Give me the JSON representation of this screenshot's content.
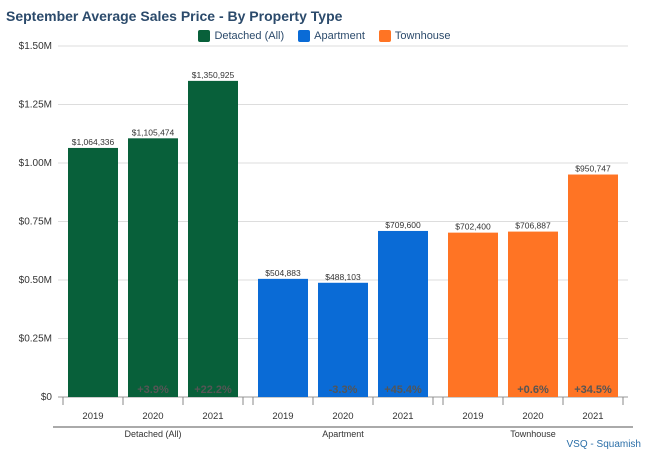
{
  "chart_data": {
    "type": "bar",
    "title": "September Average Sales Price - By Property Type",
    "ylim": [
      0,
      1500000
    ],
    "yticks": [
      0,
      250000,
      500000,
      750000,
      1000000,
      1250000,
      1500000
    ],
    "ytick_labels": [
      "$0",
      "$0.25M",
      "$0.50M",
      "$0.75M",
      "$1.00M",
      "$1.25M",
      "$1.50M"
    ],
    "grid": true,
    "legend_position": "top-center",
    "series": [
      {
        "name": "Detached (All)",
        "color": "#08603a",
        "categories": [
          "2019",
          "2020",
          "2021"
        ],
        "values": [
          1064336,
          1105474,
          1350925
        ],
        "value_labels": [
          "$1,064,336",
          "$1,105,474",
          "$1,350,925"
        ],
        "change_labels": [
          "",
          "+3.9%",
          "+22.2%"
        ]
      },
      {
        "name": "Apartment",
        "color": "#0a6bd6",
        "categories": [
          "2019",
          "2020",
          "2021"
        ],
        "values": [
          504883,
          488103,
          709600
        ],
        "value_labels": [
          "$504,883",
          "$488,103",
          "$709,600"
        ],
        "change_labels": [
          "",
          "-3.3%",
          "+45.4%"
        ]
      },
      {
        "name": "Townhouse",
        "color": "#ff7424",
        "categories": [
          "2019",
          "2020",
          "2021"
        ],
        "values": [
          702400,
          706887,
          950747
        ],
        "value_labels": [
          "$702,400",
          "$706,887",
          "$950,747"
        ],
        "change_labels": [
          "",
          "+0.6%",
          "+34.5%"
        ]
      }
    ]
  },
  "footer": {
    "source": "VSQ - Squamish"
  }
}
